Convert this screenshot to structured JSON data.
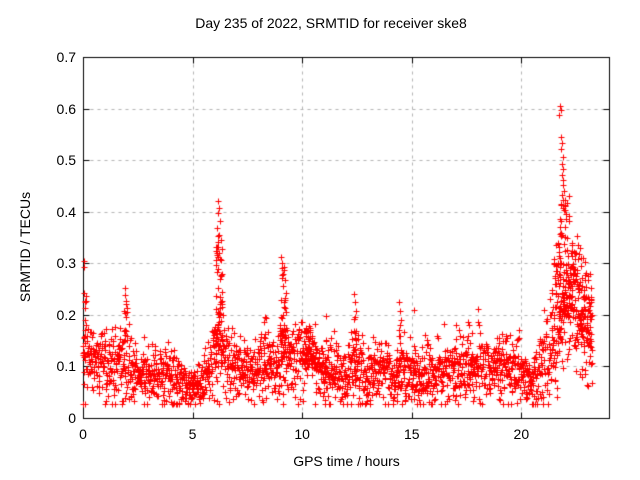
{
  "chart_data": {
    "type": "scatter",
    "title": "Day 235 of 2022, SRMTID for receiver ske8",
    "xlabel": "GPS time / hours",
    "ylabel": "SRMTID / TECUs",
    "xlim": [
      0,
      24
    ],
    "ylim": [
      0,
      0.7
    ],
    "xticks": [
      {
        "value": 0,
        "label": "0"
      },
      {
        "value": 5,
        "label": "5"
      },
      {
        "value": 10,
        "label": "10"
      },
      {
        "value": 15,
        "label": "15"
      },
      {
        "value": 20,
        "label": "20"
      }
    ],
    "yticks": [
      {
        "value": 0.0,
        "label": "0"
      },
      {
        "value": 0.1,
        "label": "0.1"
      },
      {
        "value": 0.2,
        "label": "0.2"
      },
      {
        "value": 0.3,
        "label": "0.3"
      },
      {
        "value": 0.4,
        "label": "0.4"
      },
      {
        "value": 0.5,
        "label": "0.5"
      },
      {
        "value": 0.6,
        "label": "0.6"
      },
      {
        "value": 0.7,
        "label": "0.7"
      }
    ],
    "grid": {
      "enabled": true,
      "style": "dashed",
      "color": "#b3b3b3"
    },
    "background": "#ffffff",
    "axis_color": "#000000",
    "legend": null,
    "series": [
      {
        "name": "SRMTID",
        "marker": {
          "shape": "plus",
          "color": "#ff0000",
          "size": 7
        },
        "seed": 20220235,
        "n_baseline": 2300,
        "t_end": 23.25,
        "v_min": 0.028,
        "v_max": 0.68,
        "envelope": [
          [
            0.0,
            0.135,
            0.045
          ],
          [
            0.4,
            0.12,
            0.04
          ],
          [
            0.9,
            0.11,
            0.035
          ],
          [
            1.5,
            0.1,
            0.035
          ],
          [
            1.9,
            0.115,
            0.045
          ],
          [
            2.3,
            0.085,
            0.03
          ],
          [
            2.9,
            0.08,
            0.028
          ],
          [
            3.4,
            0.09,
            0.03
          ],
          [
            3.9,
            0.075,
            0.025
          ],
          [
            4.4,
            0.072,
            0.025
          ],
          [
            4.9,
            0.058,
            0.018
          ],
          [
            5.3,
            0.068,
            0.022
          ],
          [
            5.8,
            0.095,
            0.035
          ],
          [
            6.2,
            0.14,
            0.055
          ],
          [
            6.6,
            0.105,
            0.035
          ],
          [
            7.2,
            0.095,
            0.03
          ],
          [
            7.8,
            0.092,
            0.032
          ],
          [
            8.3,
            0.105,
            0.035
          ],
          [
            8.8,
            0.095,
            0.03
          ],
          [
            9.1,
            0.13,
            0.05
          ],
          [
            9.6,
            0.115,
            0.035
          ],
          [
            10.1,
            0.125,
            0.035
          ],
          [
            10.6,
            0.11,
            0.035
          ],
          [
            11.0,
            0.085,
            0.03
          ],
          [
            11.5,
            0.085,
            0.028
          ],
          [
            11.9,
            0.078,
            0.028
          ],
          [
            12.4,
            0.095,
            0.035
          ],
          [
            12.9,
            0.08,
            0.028
          ],
          [
            13.5,
            0.09,
            0.032
          ],
          [
            14.1,
            0.085,
            0.028
          ],
          [
            14.6,
            0.095,
            0.03
          ],
          [
            15.1,
            0.08,
            0.028
          ],
          [
            15.7,
            0.085,
            0.028
          ],
          [
            16.3,
            0.09,
            0.03
          ],
          [
            16.9,
            0.095,
            0.03
          ],
          [
            17.5,
            0.095,
            0.035
          ],
          [
            18.1,
            0.1,
            0.035
          ],
          [
            18.7,
            0.095,
            0.03
          ],
          [
            19.3,
            0.1,
            0.035
          ],
          [
            19.9,
            0.095,
            0.03
          ],
          [
            20.4,
            0.068,
            0.022
          ],
          [
            20.9,
            0.09,
            0.035
          ],
          [
            21.3,
            0.13,
            0.05
          ],
          [
            21.7,
            0.19,
            0.07
          ],
          [
            22.0,
            0.23,
            0.08
          ],
          [
            22.3,
            0.23,
            0.07
          ],
          [
            22.6,
            0.2,
            0.065
          ],
          [
            22.9,
            0.17,
            0.055
          ],
          [
            23.1,
            0.16,
            0.05
          ],
          [
            23.25,
            0.14,
            0.045
          ]
        ],
        "bursts": [
          [
            0.06,
            0.12,
            0.24,
            8
          ],
          [
            1.92,
            0.14,
            0.22,
            10
          ],
          [
            6.2,
            0.32,
            0.36,
            48
          ],
          [
            8.3,
            0.12,
            0.2,
            7
          ],
          [
            9.12,
            0.26,
            0.28,
            32
          ],
          [
            10.35,
            0.55,
            0.175,
            28
          ],
          [
            11.1,
            0.15,
            0.195,
            7
          ],
          [
            12.4,
            0.12,
            0.2,
            9
          ],
          [
            14.45,
            0.14,
            0.19,
            7
          ],
          [
            15.1,
            0.12,
            0.18,
            5
          ],
          [
            17.6,
            0.3,
            0.195,
            8
          ],
          [
            18.95,
            0.2,
            0.19,
            6
          ],
          [
            21.55,
            0.45,
            0.34,
            40
          ],
          [
            21.95,
            0.45,
            0.42,
            60
          ],
          [
            22.35,
            0.45,
            0.33,
            40
          ],
          [
            22.75,
            0.4,
            0.27,
            30
          ],
          [
            23.05,
            0.3,
            0.24,
            18
          ]
        ],
        "extras": [
          [
            0.03,
            0.305
          ],
          [
            0.05,
            0.293
          ],
          [
            0.04,
            0.242
          ],
          [
            0.09,
            0.225
          ],
          [
            1.9,
            0.252
          ],
          [
            1.93,
            0.238
          ],
          [
            1.95,
            0.222
          ],
          [
            1.89,
            0.208
          ],
          [
            6.18,
            0.42
          ],
          [
            6.21,
            0.408
          ],
          [
            6.15,
            0.397
          ],
          [
            6.24,
            0.382
          ],
          [
            6.12,
            0.368
          ],
          [
            6.2,
            0.355
          ],
          [
            6.28,
            0.345
          ],
          [
            6.16,
            0.332
          ],
          [
            6.1,
            0.32
          ],
          [
            6.26,
            0.308
          ],
          [
            9.05,
            0.312
          ],
          [
            9.1,
            0.3
          ],
          [
            9.16,
            0.292
          ],
          [
            9.08,
            0.278
          ],
          [
            9.2,
            0.268
          ],
          [
            9.13,
            0.255
          ],
          [
            9.24,
            0.243
          ],
          [
            9.02,
            0.228
          ],
          [
            9.18,
            0.215
          ],
          [
            12.38,
            0.24
          ],
          [
            12.41,
            0.224
          ],
          [
            12.44,
            0.208
          ],
          [
            12.36,
            0.192
          ],
          [
            14.42,
            0.225
          ],
          [
            14.46,
            0.207
          ],
          [
            14.5,
            0.19
          ],
          [
            15.1,
            0.21
          ],
          [
            21.76,
            0.605
          ],
          [
            21.79,
            0.597
          ],
          [
            21.74,
            0.588
          ],
          [
            21.82,
            0.545
          ],
          [
            21.85,
            0.534
          ],
          [
            21.8,
            0.521
          ],
          [
            21.88,
            0.506
          ],
          [
            21.86,
            0.492
          ],
          [
            21.9,
            0.483
          ],
          [
            21.84,
            0.472
          ],
          [
            21.92,
            0.462
          ],
          [
            21.89,
            0.451
          ],
          [
            21.95,
            0.441
          ],
          [
            21.87,
            0.432
          ],
          [
            21.97,
            0.422
          ],
          [
            22.0,
            0.413
          ],
          [
            21.93,
            0.403
          ],
          [
            22.52,
            0.352
          ],
          [
            22.58,
            0.335
          ],
          [
            22.63,
            0.318
          ],
          [
            22.72,
            0.295
          ],
          [
            22.9,
            0.302
          ],
          [
            22.97,
            0.282
          ],
          [
            23.05,
            0.268
          ],
          [
            23.12,
            0.28
          ],
          [
            23.18,
            0.252
          ],
          [
            23.2,
            0.15
          ],
          [
            23.15,
            0.12
          ],
          [
            23.1,
            0.165
          ]
        ]
      }
    ]
  }
}
